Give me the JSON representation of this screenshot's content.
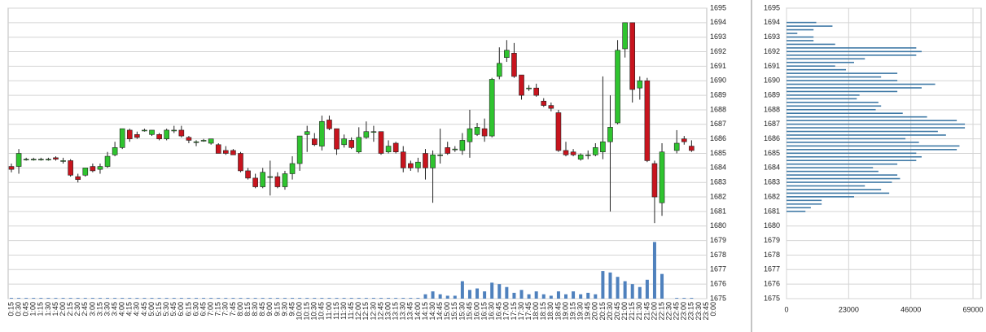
{
  "chart_data": [
    {
      "type": "candlestick",
      "categories": [
        "0:15",
        "0:30",
        "0:45",
        "1:00",
        "1:15",
        "1:30",
        "1:45",
        "2:00",
        "2:15",
        "2:30",
        "2:45",
        "3:00",
        "3:15",
        "3:30",
        "3:45",
        "4:00",
        "4:15",
        "4:30",
        "4:45",
        "5:00",
        "5:15",
        "5:30",
        "5:45",
        "6:00",
        "6:15",
        "6:30",
        "6:45",
        "7:00",
        "7:15",
        "7:30",
        "7:45",
        "8:00",
        "8:15",
        "8:30",
        "8:45",
        "9:00",
        "9:15",
        "9:30",
        "9:45",
        "10:00",
        "10:15",
        "10:30",
        "10:45",
        "11:00",
        "11:15",
        "11:30",
        "11:45",
        "12:00",
        "12:15",
        "12:30",
        "12:45",
        "13:00",
        "13:15",
        "13:30",
        "13:45",
        "14:00",
        "14:15",
        "14:30",
        "14:45",
        "15:00",
        "15:15",
        "15:30",
        "15:45",
        "16:00",
        "16:15",
        "16:30",
        "16:45",
        "17:00",
        "17:15",
        "17:30",
        "17:45",
        "18:00",
        "18:15",
        "18:30",
        "18:45",
        "19:00",
        "19:15",
        "19:30",
        "19:45",
        "20:00",
        "20:15",
        "20:30",
        "20:45",
        "21:00",
        "21:15",
        "21:30",
        "21:45",
        "22:00",
        "22:15",
        "22:30",
        "22:45",
        "23:00",
        "23:15",
        "23:30",
        "23:45",
        "0:00"
      ],
      "open": [
        1684.1,
        1684.1,
        1684.6,
        1684.6,
        1684.6,
        1684.6,
        1684.7,
        1684.5,
        1684.5,
        1683.4,
        1683.5,
        1684.1,
        1683.9,
        1684.1,
        1684.9,
        1685.4,
        1686.6,
        1686.3,
        1686.6,
        1686.3,
        1686.3,
        1686.0,
        1686.6,
        1686.6,
        1686.1,
        1685.8,
        1685.9,
        1685.7,
        1685.6,
        1685.2,
        1685.2,
        1685.0,
        1683.8,
        1683.3,
        1682.7,
        1683.4,
        1683.4,
        1682.7,
        1683.6,
        1684.3,
        1686.3,
        1686.0,
        1685.5,
        1687.3,
        1686.7,
        1685.6,
        1685.9,
        1685.1,
        1686.1,
        1686.5,
        1686.5,
        1685.1,
        1685.7,
        1685.1,
        1684.3,
        1684.0,
        1685.0,
        1684.0,
        1684.9,
        1685.4,
        1685.3,
        1685.2,
        1685.8,
        1686.3,
        1686.7,
        1686.2,
        1690.3,
        1691.6,
        1691.9,
        1690.4,
        1689.5,
        1689.5,
        1688.6,
        1688.3,
        1687.8,
        1685.2,
        1685.1,
        1684.6,
        1684.9,
        1684.9,
        1685.1,
        1685.8,
        1687.1,
        1692.2,
        1694.0,
        1689.5,
        1690.0,
        1684.3,
        1681.6,
        null,
        1685.2,
        1686.0,
        1685.5,
        null,
        null,
        null
      ],
      "high": [
        1684.3,
        1685.3,
        1684.7,
        1684.7,
        1684.7,
        1684.7,
        1684.8,
        1684.7,
        1684.6,
        1683.6,
        1684.0,
        1684.3,
        1684.3,
        1685.1,
        1685.8,
        1686.7,
        1686.7,
        1686.5,
        1686.7,
        1686.6,
        1686.4,
        1686.7,
        1686.9,
        1686.9,
        1686.2,
        1685.9,
        1686.0,
        1686.0,
        1685.7,
        1685.5,
        1685.3,
        1685.1,
        1684.0,
        1683.6,
        1684.0,
        1684.5,
        1683.7,
        1683.8,
        1684.8,
        1686.2,
        1686.9,
        1686.4,
        1687.6,
        1687.6,
        1686.7,
        1686.3,
        1686.1,
        1686.8,
        1687.2,
        1686.9,
        1686.5,
        1685.9,
        1685.8,
        1685.5,
        1684.5,
        1684.7,
        1685.3,
        1685.2,
        1686.7,
        1685.8,
        1685.5,
        1686.4,
        1688.0,
        1687.1,
        1687.4,
        1690.2,
        1692.3,
        1692.8,
        1692.6,
        1690.4,
        1689.7,
        1689.8,
        1688.8,
        1688.5,
        1688.0,
        1685.8,
        1685.3,
        1685.0,
        1685.2,
        1685.7,
        1690.3,
        1689.0,
        1692.8,
        1694.0,
        1694.0,
        1690.3,
        1690.2,
        1684.5,
        1685.7,
        null,
        1686.6,
        1686.2,
        1685.9,
        null,
        null,
        null
      ],
      "low": [
        1683.7,
        1683.6,
        1684.5,
        1684.5,
        1684.5,
        1684.5,
        1684.5,
        1684.3,
        1683.4,
        1683.0,
        1683.4,
        1683.7,
        1683.6,
        1684.0,
        1684.8,
        1685.3,
        1685.8,
        1686.0,
        1686.5,
        1686.2,
        1685.9,
        1685.9,
        1686.4,
        1686.1,
        1685.7,
        1685.5,
        1685.8,
        1685.6,
        1685.0,
        1684.9,
        1684.9,
        1683.7,
        1683.2,
        1682.6,
        1682.6,
        1682.1,
        1682.6,
        1682.5,
        1683.2,
        1683.8,
        1685.1,
        1685.5,
        1685.2,
        1686.6,
        1684.9,
        1685.4,
        1685.3,
        1685.0,
        1686.0,
        1685.8,
        1684.9,
        1685.0,
        1685.0,
        1683.7,
        1683.8,
        1683.7,
        1683.2,
        1681.6,
        1684.3,
        1684.9,
        1685.1,
        1684.9,
        1684.7,
        1686.2,
        1685.8,
        1686.1,
        1690.1,
        1691.3,
        1690.2,
        1688.7,
        1689.3,
        1688.9,
        1688.2,
        1687.9,
        1685.1,
        1684.8,
        1684.8,
        1684.5,
        1684.6,
        1684.8,
        1684.6,
        1681.0,
        1687.0,
        1691.6,
        1688.5,
        1688.7,
        1684.4,
        1680.2,
        1680.7,
        null,
        1685.0,
        1685.6,
        1685.1,
        null,
        null,
        null
      ],
      "close": [
        1683.9,
        1685.0,
        1684.6,
        1684.6,
        1684.6,
        1684.6,
        1684.6,
        1684.5,
        1683.5,
        1683.2,
        1684.0,
        1683.8,
        1684.1,
        1684.8,
        1685.4,
        1686.7,
        1686.0,
        1686.1,
        1686.6,
        1686.6,
        1686.0,
        1686.6,
        1686.6,
        1686.2,
        1685.9,
        1685.8,
        1685.9,
        1686.0,
        1685.0,
        1685.0,
        1684.9,
        1683.8,
        1683.3,
        1682.7,
        1683.7,
        1683.4,
        1682.7,
        1683.6,
        1684.3,
        1686.2,
        1686.5,
        1685.6,
        1687.2,
        1686.7,
        1685.3,
        1686.0,
        1685.4,
        1686.1,
        1686.5,
        1686.5,
        1685.0,
        1685.5,
        1685.1,
        1684.0,
        1684.0,
        1684.4,
        1684.0,
        1684.9,
        1684.9,
        1685.0,
        1685.3,
        1685.9,
        1686.7,
        1686.8,
        1686.2,
        1690.1,
        1691.2,
        1692.1,
        1690.3,
        1689.0,
        1689.5,
        1689.0,
        1688.3,
        1688.1,
        1685.2,
        1684.9,
        1684.9,
        1684.9,
        1684.9,
        1685.4,
        1685.8,
        1686.8,
        1692.1,
        1694.0,
        1689.4,
        1690.0,
        1684.5,
        1682.0,
        1685.1,
        null,
        1685.7,
        1685.8,
        1685.2,
        null,
        null,
        null
      ],
      "volume": [
        0.05,
        0.05,
        0.05,
        0.05,
        0.05,
        0.05,
        0.05,
        0.05,
        0.05,
        0.05,
        0.05,
        0.05,
        0.05,
        0.05,
        0.05,
        0.05,
        0.05,
        0.05,
        0.05,
        0.05,
        0.05,
        0.05,
        0.05,
        0.05,
        0.05,
        0.05,
        0.05,
        0.05,
        0.05,
        0.05,
        0.05,
        0.05,
        0.05,
        0.05,
        0.05,
        0.05,
        0.05,
        0.05,
        0.05,
        0.05,
        0.05,
        0.05,
        0.05,
        0.05,
        0.05,
        0.05,
        0.05,
        0.05,
        0.05,
        0.05,
        0.05,
        0.05,
        0.05,
        0.05,
        0.05,
        0.05,
        0.3,
        0.5,
        0.3,
        0.2,
        0.2,
        1.2,
        0.6,
        0.7,
        0.5,
        1.1,
        1.0,
        0.8,
        0.4,
        0.6,
        0.3,
        0.5,
        0.3,
        0.2,
        0.5,
        0.3,
        0.5,
        0.3,
        0.4,
        0.3,
        1.9,
        1.8,
        1.5,
        1.2,
        1.0,
        0.8,
        1.3,
        3.9,
        1.7,
        null,
        0.05,
        0.05,
        0.05,
        null,
        null,
        null
      ],
      "volume_ylim": [
        0,
        20
      ],
      "up_color": "#2fc42f",
      "down_color": "#c8141e",
      "volume_color": "#4f81bd",
      "ylim": [
        1675,
        1695
      ],
      "yticks": [
        1675,
        1676,
        1677,
        1678,
        1679,
        1680,
        1681,
        1682,
        1683,
        1684,
        1685,
        1686,
        1687,
        1688,
        1689,
        1690,
        1691,
        1692,
        1693,
        1694,
        1695
      ],
      "grid": true
    },
    {
      "type": "hbar",
      "categories": [
        1694.0,
        1693.75,
        1693.5,
        1693.25,
        1693.0,
        1692.75,
        1692.5,
        1692.25,
        1692.0,
        1691.75,
        1691.5,
        1691.25,
        1691.0,
        1690.75,
        1690.5,
        1690.25,
        1690.0,
        1689.75,
        1689.5,
        1689.25,
        1689.0,
        1688.75,
        1688.5,
        1688.25,
        1688.0,
        1687.75,
        1687.5,
        1687.25,
        1687.0,
        1686.75,
        1686.5,
        1686.25,
        1686.0,
        1685.75,
        1685.5,
        1685.25,
        1685.0,
        1684.75,
        1684.5,
        1684.25,
        1684.0,
        1683.75,
        1683.5,
        1683.25,
        1683.0,
        1682.75,
        1682.5,
        1682.25,
        1682.0,
        1681.75,
        1681.5,
        1681.25,
        1681.0
      ],
      "values": [
        11000,
        17000,
        10000,
        4000,
        10000,
        10000,
        18000,
        48000,
        50000,
        48000,
        29000,
        25000,
        18000,
        22000,
        41000,
        35000,
        41000,
        55000,
        50000,
        41000,
        27000,
        26000,
        34000,
        35000,
        33000,
        43000,
        52000,
        63000,
        66000,
        66000,
        56000,
        59000,
        44000,
        49000,
        64000,
        63000,
        48000,
        50000,
        48000,
        41000,
        32000,
        34000,
        41000,
        42000,
        39000,
        29000,
        35000,
        38000,
        25000,
        13000,
        13000,
        9000,
        7000
      ],
      "color": "#3f79a6",
      "ylim": [
        1675,
        1695
      ],
      "yticks": [
        1675,
        1676,
        1677,
        1678,
        1679,
        1680,
        1681,
        1682,
        1683,
        1684,
        1685,
        1686,
        1687,
        1688,
        1689,
        1690,
        1691,
        1692,
        1693,
        1694,
        1695
      ],
      "xlim": [
        0,
        72000
      ],
      "xticks": [
        0,
        23000,
        46000,
        69000
      ],
      "grid": true
    }
  ]
}
